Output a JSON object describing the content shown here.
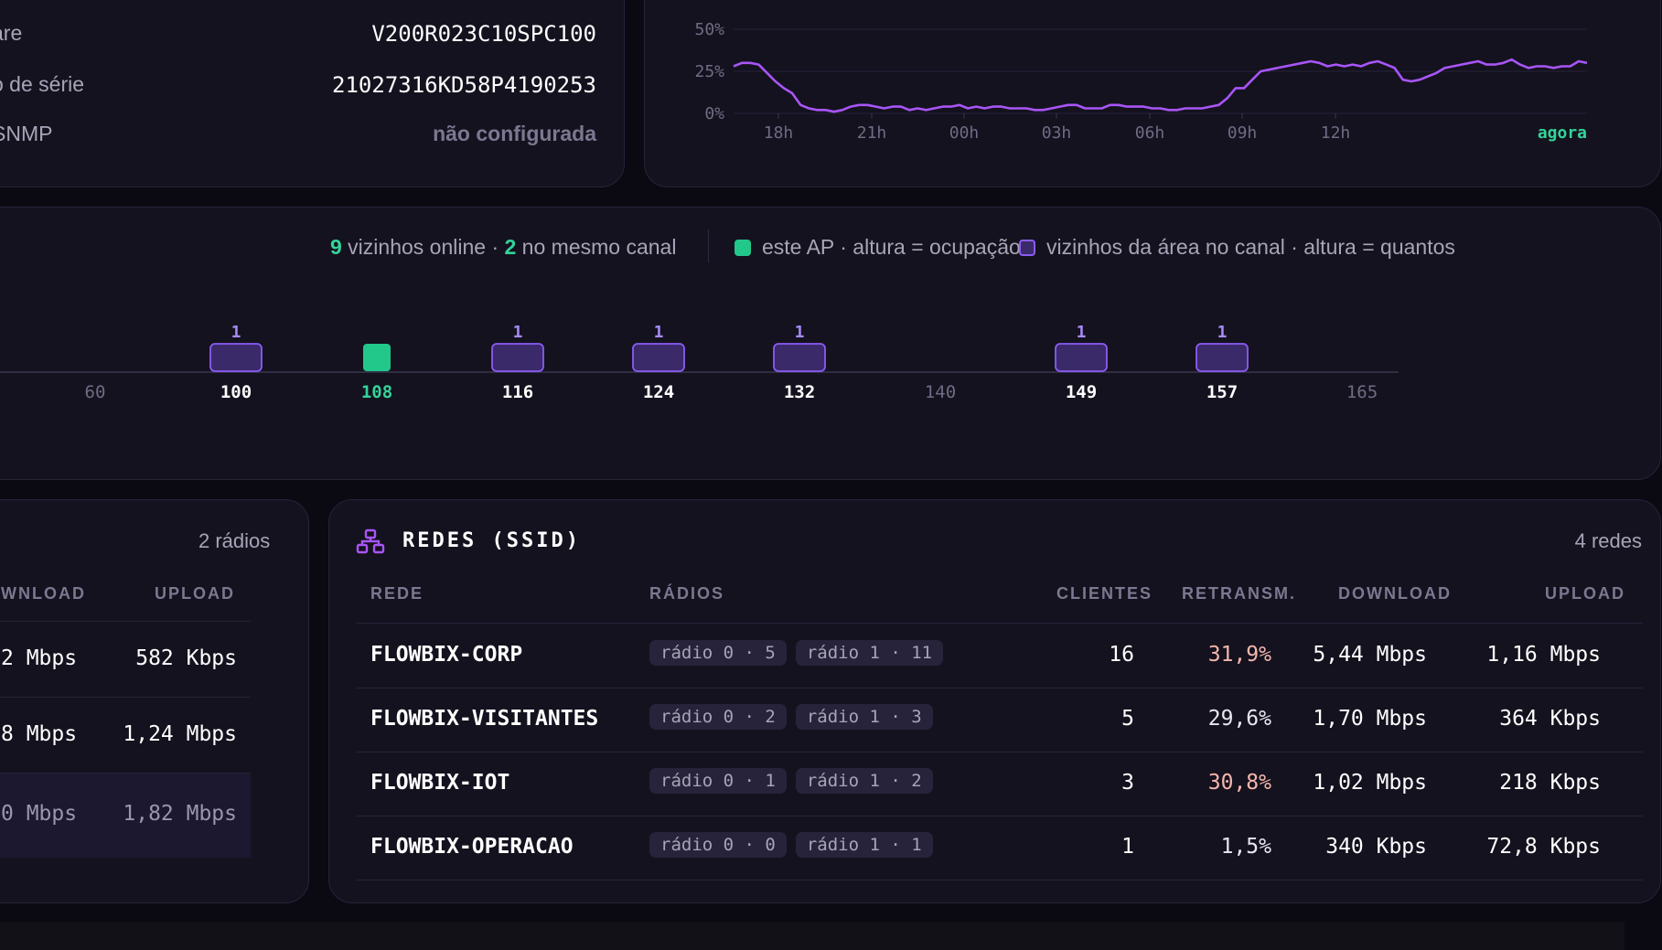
{
  "device_info": {
    "rows": [
      {
        "label": "are",
        "value": "V200R023C10SPC100"
      },
      {
        "label": "o de série",
        "value": "21027316KD58P4190253"
      },
      {
        "label": "SNMP",
        "value": "não configurada"
      }
    ]
  },
  "cpu_chart": {
    "chart_data": {
      "type": "line",
      "y_ticks": [
        "50%",
        "25%",
        "0%"
      ],
      "ylim": [
        0,
        50
      ],
      "x_ticks": [
        "18h",
        "21h",
        "00h",
        "03h",
        "06h",
        "09h",
        "12h",
        "agora"
      ],
      "series": [
        {
          "color": "#a855f7",
          "values": [
            28,
            30,
            30,
            29,
            24,
            19,
            15,
            12,
            5,
            3,
            2,
            2,
            1,
            2,
            4,
            5,
            5,
            4,
            3,
            4,
            4,
            2,
            3,
            2,
            3,
            4,
            4,
            5,
            3,
            4,
            3,
            4,
            4,
            3,
            3,
            3,
            2,
            2,
            3,
            4,
            5,
            5,
            3,
            3,
            3,
            5,
            5,
            4,
            4,
            4,
            3,
            3,
            2,
            2,
            3,
            3,
            3,
            4,
            5,
            9,
            15,
            15,
            20,
            25,
            26,
            27,
            28,
            29,
            30,
            31,
            30,
            28,
            29,
            28,
            29,
            28,
            30,
            31,
            29,
            27,
            20,
            19,
            20,
            22,
            24,
            27,
            28,
            29,
            30,
            31,
            29,
            29,
            30,
            32,
            29,
            27,
            28,
            28,
            27,
            28,
            28,
            31,
            30
          ]
        }
      ]
    }
  },
  "channels": {
    "summary": {
      "online_count": "9",
      "online_text": " vizinhos online · ",
      "same_count": "2",
      "same_text": " no mesmo canal"
    },
    "legend_ap": "este AP · altura = ocupação",
    "legend_neighbors": "vizinhos da área no canal · altura = quantos",
    "colors": {
      "ap": "#22c78a",
      "neighbor": "#3b2a69",
      "neighbor_border": "#8b5cf6"
    },
    "chart_data": {
      "type": "bar",
      "categories": [
        "60",
        "100",
        "108",
        "116",
        "124",
        "132",
        "140",
        "149",
        "157",
        "165"
      ],
      "values": [
        0,
        1,
        0,
        1,
        1,
        1,
        0,
        1,
        1,
        0
      ],
      "this_ap_channel": "108",
      "labels": [
        "",
        "1",
        "",
        "1",
        "1",
        "1",
        "",
        "1",
        "1",
        ""
      ]
    }
  },
  "radios": {
    "count_label": "2 rádios",
    "headers": {
      "download": "WNLOAD",
      "upload": "UPLOAD"
    },
    "rows": [
      {
        "download": "2 Mbps",
        "upload": "582 Kbps"
      },
      {
        "download": "8 Mbps",
        "upload": "1,24 Mbps"
      },
      {
        "download": "0 Mbps",
        "upload": "1,82 Mbps"
      }
    ]
  },
  "ssid": {
    "title": "REDES (SSID)",
    "count_label": "4 redes",
    "headers": {
      "rede": "REDE",
      "radios": "RÁDIOS",
      "clientes": "CLIENTES",
      "retransm": "RETRANSM.",
      "download": "DOWNLOAD",
      "upload": "UPLOAD"
    },
    "rows": [
      {
        "name": "FLOWBIX-CORP",
        "chip0": "rádio 0 · 5",
        "chip1": "rádio 1 · 11",
        "clients": "16",
        "retransm": "31,9%",
        "retransm_color": "#f4b7ad",
        "download": "5,44 Mbps",
        "upload": "1,16 Mbps"
      },
      {
        "name": "FLOWBIX-VISITANTES",
        "chip0": "rádio 0 · 2",
        "chip1": "rádio 1 · 3",
        "clients": "5",
        "retransm": "29,6%",
        "retransm_color": "#e8e6f0",
        "download": "1,70 Mbps",
        "upload": "364 Kbps"
      },
      {
        "name": "FLOWBIX-IOT",
        "chip0": "rádio 0 · 1",
        "chip1": "rádio 1 · 2",
        "clients": "3",
        "retransm": "30,8%",
        "retransm_color": "#f4b7ad",
        "download": "1,02 Mbps",
        "upload": "218 Kbps"
      },
      {
        "name": "FLOWBIX-OPERACAO",
        "chip0": "rádio 0 · 0",
        "chip1": "rádio 1 · 1",
        "clients": "1",
        "retransm": "1,5%",
        "retransm_color": "#e8e6f0",
        "download": "340 Kbps",
        "upload": "72,8 Kbps"
      }
    ]
  }
}
